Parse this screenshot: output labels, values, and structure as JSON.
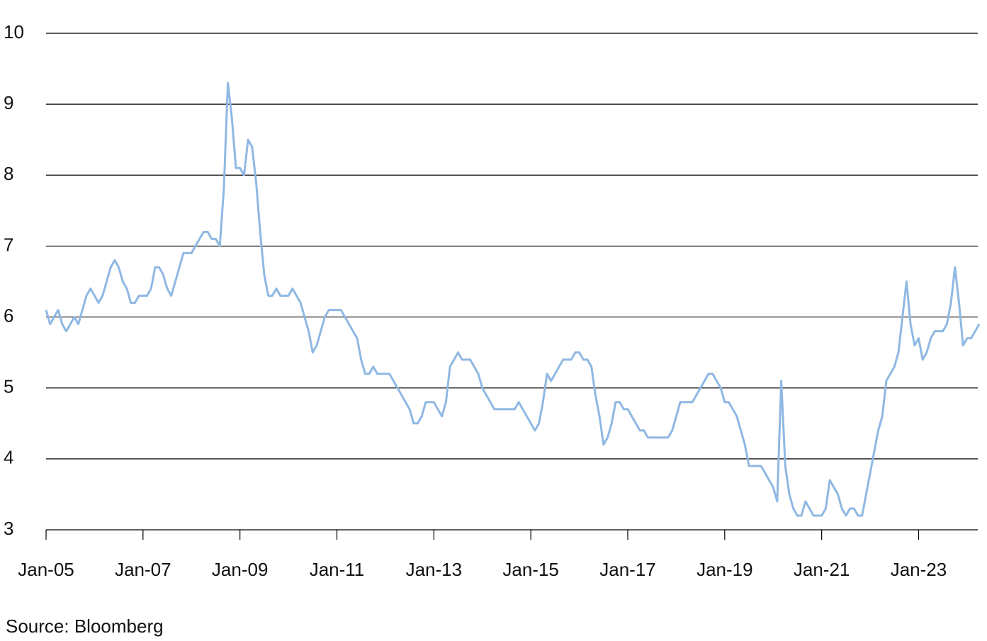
{
  "chart_data": {
    "type": "line",
    "source": "Source: Bloomberg",
    "x": [
      "2005-01",
      "2005-02",
      "2005-03",
      "2005-04",
      "2005-05",
      "2005-06",
      "2005-07",
      "2005-08",
      "2005-09",
      "2005-10",
      "2005-11",
      "2005-12",
      "2006-01",
      "2006-02",
      "2006-03",
      "2006-04",
      "2006-05",
      "2006-06",
      "2006-07",
      "2006-08",
      "2006-09",
      "2006-10",
      "2006-11",
      "2006-12",
      "2007-01",
      "2007-02",
      "2007-03",
      "2007-04",
      "2007-05",
      "2007-06",
      "2007-07",
      "2007-08",
      "2007-09",
      "2007-10",
      "2007-11",
      "2007-12",
      "2008-01",
      "2008-02",
      "2008-03",
      "2008-04",
      "2008-05",
      "2008-06",
      "2008-07",
      "2008-08",
      "2008-09",
      "2008-10",
      "2008-11",
      "2008-12",
      "2009-01",
      "2009-02",
      "2009-03",
      "2009-04",
      "2009-05",
      "2009-06",
      "2009-07",
      "2009-08",
      "2009-09",
      "2009-10",
      "2009-11",
      "2009-12",
      "2010-01",
      "2010-02",
      "2010-03",
      "2010-04",
      "2010-05",
      "2010-06",
      "2010-07",
      "2010-08",
      "2010-09",
      "2010-10",
      "2010-11",
      "2010-12",
      "2011-01",
      "2011-02",
      "2011-03",
      "2011-04",
      "2011-05",
      "2011-06",
      "2011-07",
      "2011-08",
      "2011-09",
      "2011-10",
      "2011-11",
      "2011-12",
      "2012-01",
      "2012-02",
      "2012-03",
      "2012-04",
      "2012-05",
      "2012-06",
      "2012-07",
      "2012-08",
      "2012-09",
      "2012-10",
      "2012-11",
      "2012-12",
      "2013-01",
      "2013-02",
      "2013-03",
      "2013-04",
      "2013-05",
      "2013-06",
      "2013-07",
      "2013-08",
      "2013-09",
      "2013-10",
      "2013-11",
      "2013-12",
      "2014-01",
      "2014-02",
      "2014-03",
      "2014-04",
      "2014-05",
      "2014-06",
      "2014-07",
      "2014-08",
      "2014-09",
      "2014-10",
      "2014-11",
      "2014-12",
      "2015-01",
      "2015-02",
      "2015-03",
      "2015-04",
      "2015-05",
      "2015-06",
      "2015-07",
      "2015-08",
      "2015-09",
      "2015-10",
      "2015-11",
      "2015-12",
      "2016-01",
      "2016-02",
      "2016-03",
      "2016-04",
      "2016-05",
      "2016-06",
      "2016-07",
      "2016-08",
      "2016-09",
      "2016-10",
      "2016-11",
      "2016-12",
      "2017-01",
      "2017-02",
      "2017-03",
      "2017-04",
      "2017-05",
      "2017-06",
      "2017-07",
      "2017-08",
      "2017-09",
      "2017-10",
      "2017-11",
      "2017-12",
      "2018-01",
      "2018-02",
      "2018-03",
      "2018-04",
      "2018-05",
      "2018-06",
      "2018-07",
      "2018-08",
      "2018-09",
      "2018-10",
      "2018-11",
      "2018-12",
      "2019-01",
      "2019-02",
      "2019-03",
      "2019-04",
      "2019-05",
      "2019-06",
      "2019-07",
      "2019-08",
      "2019-09",
      "2019-10",
      "2019-11",
      "2019-12",
      "2020-01",
      "2020-02",
      "2020-03",
      "2020-04",
      "2020-05",
      "2020-06",
      "2020-07",
      "2020-08",
      "2020-09",
      "2020-10",
      "2020-11",
      "2020-12",
      "2021-01",
      "2021-02",
      "2021-03",
      "2021-04",
      "2021-05",
      "2021-06",
      "2021-07",
      "2021-08",
      "2021-09",
      "2021-10",
      "2021-11",
      "2021-12",
      "2022-01",
      "2022-02",
      "2022-03",
      "2022-04",
      "2022-05",
      "2022-06",
      "2022-07",
      "2022-08",
      "2022-09",
      "2022-10",
      "2022-11",
      "2022-12",
      "2023-01",
      "2023-02",
      "2023-03",
      "2023-04",
      "2023-05",
      "2023-06",
      "2023-07",
      "2023-08",
      "2023-09",
      "2023-10",
      "2023-11",
      "2023-12",
      "2024-01",
      "2024-02",
      "2024-03",
      "2024-04"
    ],
    "series": [
      {
        "color": "#8fb8e3",
        "values": [
          6.1,
          5.9,
          6.0,
          6.1,
          5.9,
          5.8,
          5.9,
          6.0,
          5.9,
          6.1,
          6.3,
          6.4,
          6.3,
          6.2,
          6.3,
          6.5,
          6.7,
          6.8,
          6.7,
          6.5,
          6.4,
          6.2,
          6.2,
          6.3,
          6.3,
          6.3,
          6.4,
          6.7,
          6.7,
          6.6,
          6.4,
          6.3,
          6.5,
          6.7,
          6.9,
          6.9,
          6.9,
          7.0,
          7.1,
          7.2,
          7.2,
          7.1,
          7.1,
          7.0,
          7.8,
          9.3,
          8.8,
          8.1,
          8.1,
          8.0,
          8.5,
          8.4,
          7.9,
          7.2,
          6.6,
          6.3,
          6.3,
          6.4,
          6.3,
          6.3,
          6.3,
          6.4,
          6.3,
          6.2,
          6.0,
          5.8,
          5.5,
          5.6,
          5.8,
          6.0,
          6.1,
          6.1,
          6.1,
          6.1,
          6.0,
          5.9,
          5.8,
          5.7,
          5.4,
          5.2,
          5.2,
          5.3,
          5.2,
          5.2,
          5.2,
          5.2,
          5.1,
          5.0,
          4.9,
          4.8,
          4.7,
          4.5,
          4.5,
          4.6,
          4.8,
          4.8,
          4.8,
          4.7,
          4.6,
          4.8,
          5.3,
          5.4,
          5.5,
          5.4,
          5.4,
          5.4,
          5.3,
          5.2,
          5.0,
          4.9,
          4.8,
          4.7,
          4.7,
          4.7,
          4.7,
          4.7,
          4.7,
          4.8,
          4.7,
          4.6,
          4.5,
          4.4,
          4.5,
          4.8,
          5.2,
          5.1,
          5.2,
          5.3,
          5.4,
          5.4,
          5.4,
          5.5,
          5.5,
          5.4,
          5.4,
          5.3,
          4.9,
          4.6,
          4.2,
          4.3,
          4.5,
          4.8,
          4.8,
          4.7,
          4.7,
          4.6,
          4.5,
          4.4,
          4.4,
          4.3,
          4.3,
          4.3,
          4.3,
          4.3,
          4.3,
          4.4,
          4.6,
          4.8,
          4.8,
          4.8,
          4.8,
          4.9,
          5.0,
          5.1,
          5.2,
          5.2,
          5.1,
          5.0,
          4.8,
          4.8,
          4.7,
          4.6,
          4.4,
          4.2,
          3.9,
          3.9,
          3.9,
          3.9,
          3.8,
          3.7,
          3.6,
          3.4,
          5.1,
          3.9,
          3.5,
          3.3,
          3.2,
          3.2,
          3.4,
          3.3,
          3.2,
          3.2,
          3.2,
          3.3,
          3.7,
          3.6,
          3.5,
          3.3,
          3.2,
          3.3,
          3.3,
          3.2,
          3.2,
          3.5,
          3.8,
          4.1,
          4.4,
          4.6,
          5.1,
          5.2,
          5.3,
          5.5,
          6.0,
          6.5,
          5.9,
          5.6,
          5.7,
          5.4,
          5.5,
          5.7,
          5.8,
          5.8,
          5.8,
          5.9,
          6.2,
          6.7,
          6.2,
          5.6,
          5.7,
          5.7,
          5.8,
          5.9
        ]
      }
    ],
    "xlim": [
      "2005-01",
      "2024-04"
    ],
    "xticks": [
      {
        "value": "2005-01",
        "label": "Jan-05"
      },
      {
        "value": "2007-01",
        "label": "Jan-07"
      },
      {
        "value": "2009-01",
        "label": "Jan-09"
      },
      {
        "value": "2011-01",
        "label": "Jan-11"
      },
      {
        "value": "2013-01",
        "label": "Jan-13"
      },
      {
        "value": "2015-01",
        "label": "Jan-15"
      },
      {
        "value": "2017-01",
        "label": "Jan-17"
      },
      {
        "value": "2019-01",
        "label": "Jan-19"
      },
      {
        "value": "2021-01",
        "label": "Jan-21"
      },
      {
        "value": "2023-01",
        "label": "Jan-23"
      }
    ],
    "ylim": [
      3,
      10
    ],
    "yticks": [
      3,
      4,
      5,
      6,
      7,
      8,
      9,
      10
    ],
    "grid": true
  }
}
